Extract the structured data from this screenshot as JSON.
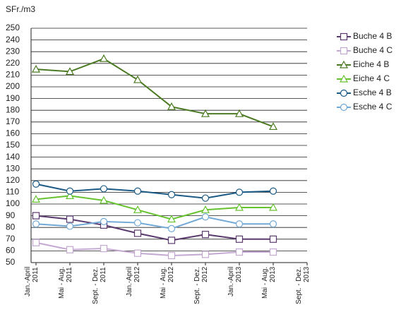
{
  "chart_data": {
    "type": "line",
    "y_label": "SFr./m3",
    "categories": [
      "Jan.-April\n2011",
      "Mai - Aug.\n2011",
      "Sept. - Dez.\n2011",
      "Jan.-April\n2012",
      "Mai - Aug.\n2012",
      "Sept. - Dez.\n2012",
      "Jan.-April\n2013",
      "Mai - Aug.\n2013",
      "Sept. - Dez.\n2013"
    ],
    "series": [
      {
        "name": "Buche 4 B",
        "color": "#5a3a6e",
        "marker": "square",
        "values": [
          90,
          87,
          82,
          75,
          69,
          74,
          70,
          70,
          null
        ]
      },
      {
        "name": "Buche 4 C",
        "color": "#c3a8d1",
        "marker": "square",
        "values": [
          67,
          61,
          62,
          58,
          56,
          57,
          59,
          59,
          null
        ]
      },
      {
        "name": "Eiche 4 B",
        "color": "#4b7a22",
        "marker": "triangle",
        "values": [
          215,
          213,
          224,
          206,
          183,
          177,
          177,
          166,
          null
        ]
      },
      {
        "name": "Eiche 4 C",
        "color": "#66c22e",
        "marker": "triangle",
        "values": [
          104,
          107,
          103,
          95,
          87,
          95,
          97,
          97,
          null
        ]
      },
      {
        "name": "Esche 4 B",
        "color": "#1c5a86",
        "marker": "circle",
        "values": [
          117,
          111,
          113,
          111,
          108,
          105,
          110,
          111,
          null
        ]
      },
      {
        "name": "Esche 4 C",
        "color": "#72a9d6",
        "marker": "circle",
        "values": [
          83,
          81,
          85,
          84,
          79,
          89,
          83,
          83,
          null
        ]
      }
    ],
    "ylim": [
      50,
      250
    ],
    "yticks": [
      50,
      60,
      70,
      80,
      90,
      100,
      110,
      120,
      130,
      140,
      150,
      160,
      170,
      180,
      190,
      200,
      210,
      220,
      230,
      240,
      250
    ],
    "grid": true,
    "legend": "right"
  }
}
